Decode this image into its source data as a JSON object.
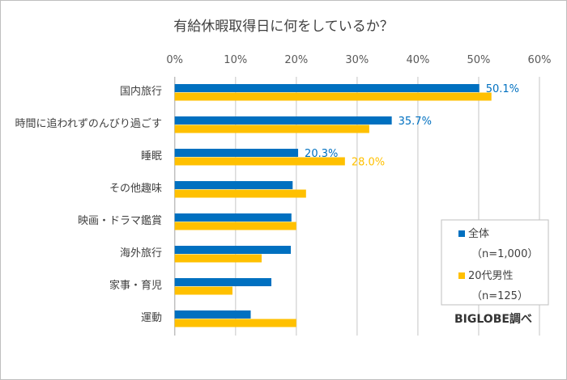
{
  "chart_data": {
    "type": "bar",
    "orientation": "horizontal",
    "title": "有給休暇取得日に何をしているか？",
    "categories": [
      "国内旅行",
      "時間に追われずのんびり過ごす",
      "睡眠",
      "その他趣味",
      "映画・ドラマ鑑賞",
      "海外旅行",
      "家事・育児",
      "運動"
    ],
    "series": [
      {
        "name": "全体",
        "sample": "（n=1,000）",
        "color": "#0070C0",
        "values": [
          50.1,
          35.7,
          20.3,
          19.4,
          19.2,
          19.1,
          15.9,
          12.5
        ]
      },
      {
        "name": "20代男性",
        "sample": "（n=125）",
        "color": "#FFC000",
        "values": [
          52.1,
          32.0,
          28.0,
          21.6,
          20.0,
          14.3,
          9.5,
          20.0
        ]
      }
    ],
    "data_labels": [
      {
        "series": 0,
        "category": 0,
        "text": "50.1%"
      },
      {
        "series": 0,
        "category": 1,
        "text": "35.7%"
      },
      {
        "series": 0,
        "category": 2,
        "text": "20.3%"
      },
      {
        "series": 1,
        "category": 2,
        "text": "28.0%"
      }
    ],
    "xlim": [
      0,
      60
    ],
    "xticks": [
      "0%",
      "10%",
      "20%",
      "30%",
      "40%",
      "50%",
      "60%"
    ],
    "axis_position": "top",
    "grid": true,
    "legend_placement": "bottom-right",
    "xlabel": "",
    "ylabel": ""
  },
  "source_note": "BIGLOBE調べ"
}
